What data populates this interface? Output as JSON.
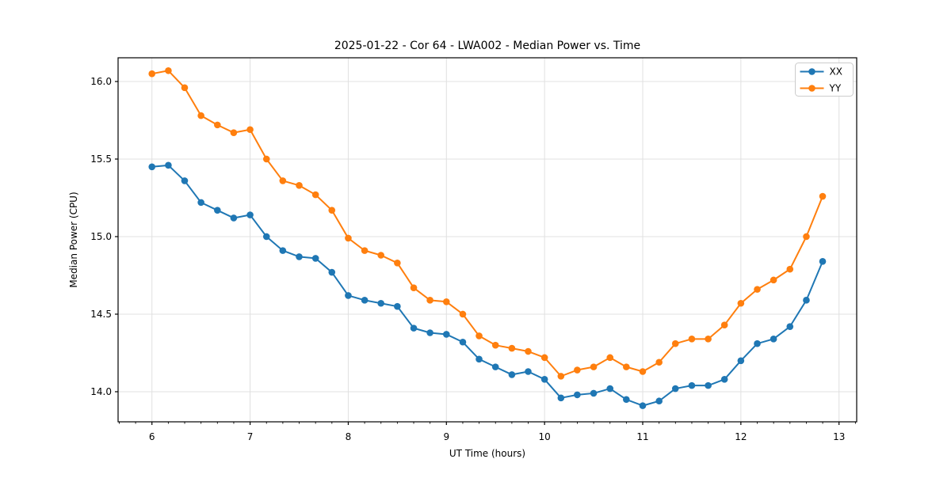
{
  "chart_data": {
    "type": "line",
    "title": "2025-01-22 - Cor 64 - LWA002 - Median Power vs. Time",
    "xlabel": "UT Time (hours)",
    "ylabel": "Median Power (CPU)",
    "xlim": [
      5.655,
      13.18
    ],
    "ylim": [
      13.806,
      16.153
    ],
    "xticks": [
      6,
      7,
      8,
      9,
      10,
      11,
      12,
      13
    ],
    "yticks": [
      14.0,
      14.5,
      15.0,
      15.5,
      16.0
    ],
    "x_minor_step": 0.16667,
    "grid": true,
    "grid_color": "#e0e0e0",
    "legend_position": "upper right",
    "x": [
      6.0,
      6.167,
      6.333,
      6.5,
      6.667,
      6.833,
      7.0,
      7.167,
      7.333,
      7.5,
      7.667,
      7.833,
      8.0,
      8.167,
      8.333,
      8.5,
      8.667,
      8.833,
      9.0,
      9.167,
      9.333,
      9.5,
      9.667,
      9.833,
      10.0,
      10.167,
      10.333,
      10.5,
      10.667,
      10.833,
      11.0,
      11.167,
      11.333,
      11.5,
      11.667,
      11.833,
      12.0,
      12.167,
      12.333,
      12.5,
      12.667,
      12.833
    ],
    "series": [
      {
        "name": "XX",
        "color": "#1f77b4",
        "values": [
          15.45,
          15.46,
          15.36,
          15.22,
          15.17,
          15.12,
          15.14,
          15.0,
          14.91,
          14.87,
          14.86,
          14.77,
          14.62,
          14.59,
          14.57,
          14.55,
          14.41,
          14.38,
          14.37,
          14.32,
          14.21,
          14.16,
          14.11,
          14.13,
          14.08,
          13.96,
          13.98,
          13.99,
          14.02,
          13.95,
          13.91,
          13.94,
          14.02,
          14.04,
          14.04,
          14.08,
          14.2,
          14.31,
          14.34,
          14.42,
          14.59,
          14.84
        ]
      },
      {
        "name": "YY",
        "color": "#ff7f0e",
        "values": [
          16.05,
          16.07,
          15.96,
          15.78,
          15.72,
          15.67,
          15.69,
          15.5,
          15.36,
          15.33,
          15.27,
          15.17,
          14.99,
          14.91,
          14.88,
          14.83,
          14.67,
          14.59,
          14.58,
          14.5,
          14.36,
          14.3,
          14.28,
          14.26,
          14.22,
          14.1,
          14.14,
          14.16,
          14.22,
          14.16,
          14.13,
          14.19,
          14.31,
          14.34,
          14.34,
          14.43,
          14.57,
          14.66,
          14.72,
          14.79,
          15.0,
          15.26
        ]
      }
    ]
  }
}
